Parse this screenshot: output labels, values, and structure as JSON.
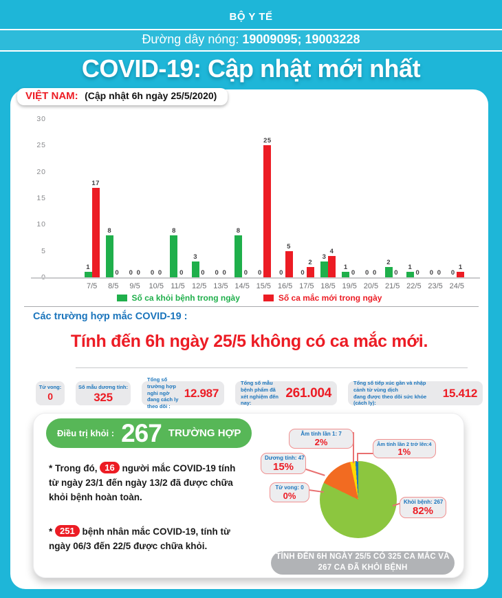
{
  "header": {
    "ministry": "BỘ Y TẾ",
    "hotline_label": "Đường dây nóng: ",
    "hotline_numbers": "19009095; 19003228",
    "title": "COVID-19: Cập nhật mới nhất"
  },
  "vietnam_badge": {
    "country": "VIỆT NAM:",
    "update": "(Cập nhật 6h ngày 25/5/2020)"
  },
  "chart_data": [
    {
      "type": "bar",
      "title": "Số ca theo ngày",
      "categories": [
        "7/5",
        "8/5",
        "9/5",
        "10/5",
        "11/5",
        "12/5",
        "13/5",
        "14/5",
        "15/5",
        "16/5",
        "17/5",
        "18/5",
        "19/5",
        "20/5",
        "21/5",
        "22/5",
        "23/5",
        "24/5"
      ],
      "series": [
        {
          "name": "Số ca khỏi bệnh trong ngày",
          "color": "#1FAF4B",
          "values": [
            1,
            8,
            0,
            0,
            8,
            3,
            0,
            8,
            0,
            0,
            0,
            3,
            1,
            0,
            2,
            1,
            0,
            0
          ]
        },
        {
          "name": "Số ca mắc mới  trong ngày",
          "color": "#EC1C24",
          "values": [
            17,
            0,
            0,
            0,
            0,
            0,
            0,
            0,
            25,
            5,
            2,
            4,
            0,
            0,
            0,
            0,
            0,
            1
          ]
        }
      ],
      "ylim": [
        0,
        30
      ],
      "yticks": [
        0,
        5,
        10,
        15,
        20,
        25,
        30
      ],
      "grid": false,
      "legend_position": "bottom"
    },
    {
      "type": "pie",
      "total": 325,
      "slices": [
        {
          "id": "khoi",
          "label": "Khỏi bệnh: 267",
          "pct": "82%",
          "value": 267,
          "color": "#8CC63F"
        },
        {
          "id": "duong",
          "label": "Dương tính: 47",
          "pct": "15%",
          "value": 47,
          "color": "#F26B21"
        },
        {
          "id": "am1",
          "label": "Âm tính lần 1: 7",
          "pct": "2%",
          "value": 7,
          "color": "#FFD800"
        },
        {
          "id": "am2",
          "label": "Âm tính lần 2 trở lên:4",
          "pct": "1%",
          "value": 4,
          "color": "#1B75BC"
        },
        {
          "id": "tuvong",
          "label": "Tử vong: 0",
          "pct": "0%",
          "value": 0,
          "color": null
        }
      ]
    }
  ],
  "cases_section": {
    "heading": "Các trường hợp mắc COVID-19 :",
    "headline": "Tính đến 6h ngày 25/5 không có ca mắc mới."
  },
  "stats": [
    {
      "label": "Tử vong:",
      "value": "0"
    },
    {
      "label": "Số mẫu dương tính:",
      "value": "325"
    },
    {
      "label": "Tổng số trường hợp nghi ngờ",
      "label2": "đang cách ly theo dõi :",
      "value": "12.987"
    },
    {
      "label": "Tổng số mẫu bệnh phẩm đã",
      "label2": "xét nghiệm đến nay:",
      "value": "261.004"
    },
    {
      "label": "Tổng số tiếp xúc gần và nhập cảnh từ vùng dịch",
      "label2": "đang được theo dõi sức khỏe (cách ly):",
      "value": "15.412"
    }
  ],
  "treatment": {
    "badge_label": "Điều trị khỏi :",
    "badge_value": "267",
    "badge_unit": "TRƯỜNG HỢP",
    "para1_prefix": "* Trong đó, ",
    "para1_value": "16",
    "para1_suffix": " người mắc COVID-19 tính từ ngày 23/1 đến ngày 13/2 đã được chữa khỏi bệnh hoàn toàn.",
    "para2_prefix": "* ",
    "para2_value": "251",
    "para2_suffix": " bệnh nhân  mắc COVID-19, tính từ ngày 06/3 đến 22/5 được chữa khỏi."
  },
  "summary_box": {
    "line1": "TÍNH ĐẾN 6H NGÀY 25/5 CÓ 325 CA MẮC VÀ",
    "line2": "267 CA ĐÃ KHỎI BỆNH"
  },
  "colors": {
    "background": "#1EB6D8",
    "accent_red": "#EC1C24",
    "accent_blue": "#1B75BC",
    "badge_green": "#57B757"
  }
}
